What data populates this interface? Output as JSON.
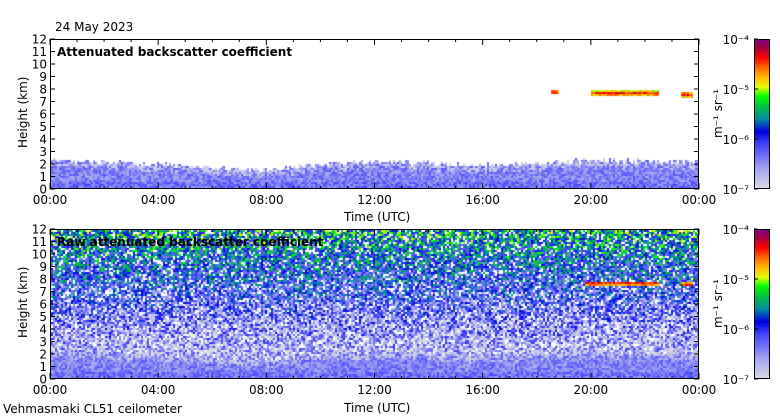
{
  "header": {
    "date": "24 May 2023"
  },
  "footer": {
    "station": "Vehmasmaki CL51 ceilometer"
  },
  "colors": {
    "axis": "#000000",
    "background": "#ffffff"
  },
  "chart_data": [
    {
      "type": "heatmap",
      "title": "Attenuated backscatter coefficient",
      "xlabel": "Time (UTC)",
      "ylabel": "Height (km)",
      "x_ticks": [
        "00:00",
        "04:00",
        "08:00",
        "12:00",
        "16:00",
        "20:00",
        "00:00"
      ],
      "xlim_hours": [
        0,
        24
      ],
      "y_ticks": [
        "0",
        "1",
        "2",
        "3",
        "4",
        "5",
        "6",
        "7",
        "8",
        "9",
        "10",
        "11",
        "12"
      ],
      "ylim_km": [
        0,
        12
      ],
      "colorbar": {
        "label": "m⁻¹ sr⁻¹",
        "scale": "log",
        "ticks": [
          "10⁻⁷",
          "10⁻⁶",
          "10⁻⁵",
          "10⁻⁴"
        ],
        "range_log10": [
          -7,
          -4
        ]
      },
      "boundary_layer_top_km": {
        "hours": [
          0,
          4,
          8,
          10,
          12,
          14,
          16,
          20,
          24
        ],
        "values": [
          2.3,
          2.0,
          1.5,
          2.0,
          2.2,
          2.1,
          1.9,
          2.3,
          2.2
        ]
      },
      "cloud_layers": [
        {
          "start_h": 18.5,
          "end_h": 18.8,
          "base_km": 7.7,
          "top_km": 8.0
        },
        {
          "start_h": 20.0,
          "end_h": 22.5,
          "base_km": 7.5,
          "top_km": 8.0
        },
        {
          "start_h": 23.3,
          "end_h": 23.8,
          "base_km": 7.4,
          "top_km": 7.9
        }
      ]
    },
    {
      "type": "heatmap",
      "title": "Raw attenuated backscatter coefficient",
      "xlabel": "Time (UTC)",
      "ylabel": "Height (km)",
      "x_ticks": [
        "00:00",
        "04:00",
        "08:00",
        "12:00",
        "16:00",
        "20:00",
        "00:00"
      ],
      "xlim_hours": [
        0,
        24
      ],
      "y_ticks": [
        "0",
        "1",
        "2",
        "3",
        "4",
        "5",
        "6",
        "7",
        "8",
        "9",
        "10",
        "11",
        "12"
      ],
      "ylim_km": [
        0,
        12
      ],
      "colorbar": {
        "label": "m⁻¹ sr⁻¹",
        "scale": "log",
        "ticks": [
          "10⁻⁷",
          "10⁻⁶",
          "10⁻⁵",
          "10⁻⁴"
        ],
        "range_log10": [
          -7,
          -4
        ]
      },
      "cloud_layers": [
        {
          "start_h": 19.8,
          "end_h": 22.5,
          "base_km": 7.6,
          "top_km": 7.9
        },
        {
          "start_h": 23.3,
          "end_h": 23.8,
          "base_km": 7.5,
          "top_km": 7.8
        }
      ]
    }
  ]
}
